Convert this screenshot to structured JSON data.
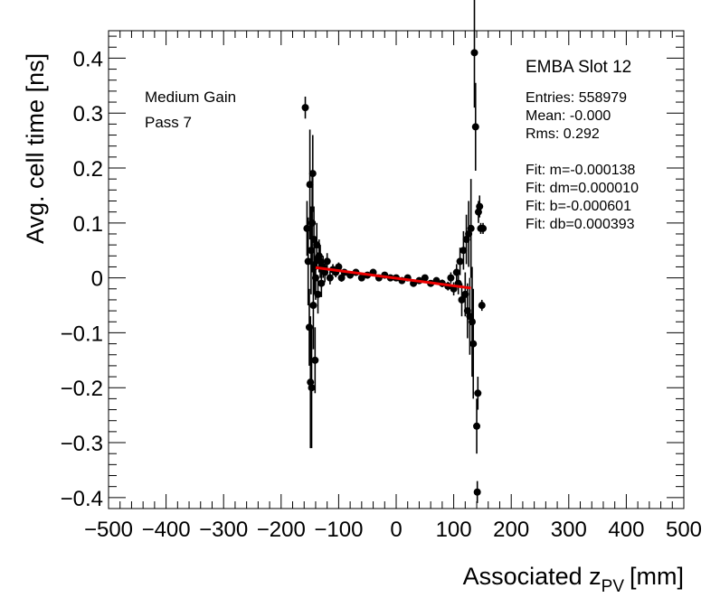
{
  "chart_data": {
    "type": "scatter",
    "title": "",
    "xlabel_main": "Associated z",
    "xlabel_sub": "PV",
    "xlabel_unit": "[mm]",
    "ylabel": "Avg. cell time [ns]",
    "xlim": [
      -500,
      500
    ],
    "ylim": [
      -0.42,
      0.45
    ],
    "x_ticks": [
      -500,
      -400,
      -300,
      -200,
      -100,
      0,
      100,
      200,
      300,
      400,
      500
    ],
    "x_tick_labels": [
      "−500",
      "−400",
      "−300",
      "−200",
      "−100",
      "0",
      "100",
      "200",
      "300",
      "400",
      "500"
    ],
    "y_ticks": [
      -0.4,
      -0.3,
      -0.2,
      -0.1,
      0,
      0.1,
      0.2,
      0.3,
      0.4
    ],
    "y_tick_labels": [
      "−0.4",
      "−0.3",
      "−0.2",
      "−0.1",
      "0",
      "0.1",
      "0.2",
      "0.3",
      "0.4"
    ],
    "grid": false,
    "series": [
      {
        "name": "Avg. cell time",
        "x": [
          -158,
          -155,
          -153,
          -151,
          -150,
          -149,
          -148,
          -147,
          -146,
          -145,
          -144,
          -143,
          -142,
          -141,
          -140,
          -138,
          -136,
          -134,
          -132,
          -130,
          -127,
          -124,
          -120,
          -115,
          -110,
          -105,
          -100,
          -95,
          -90,
          -80,
          -70,
          -60,
          -50,
          -40,
          -30,
          -20,
          -10,
          0,
          10,
          20,
          30,
          40,
          50,
          60,
          70,
          80,
          90,
          95,
          100,
          105,
          108,
          111,
          114,
          117,
          120,
          122,
          124,
          126,
          128,
          130,
          132,
          134,
          136,
          138,
          140,
          141,
          142,
          143,
          145,
          147,
          149,
          151
        ],
        "y": [
          0.31,
          0.09,
          0.03,
          -0.09,
          0.17,
          -0.19,
          0.05,
          -0.2,
          0.1,
          0.19,
          -0.05,
          0.07,
          0.02,
          -0.15,
          0.0,
          0.06,
          -0.03,
          0.04,
          0.03,
          -0.01,
          0.02,
          0.01,
          0.03,
          0.0,
          0.015,
          0.01,
          0.02,
          0.0,
          0.01,
          0.005,
          0.01,
          0.0,
          0.005,
          0.01,
          0.0,
          0.005,
          0.0,
          0.0,
          -0.005,
          0.0,
          -0.01,
          -0.005,
          0.0,
          -0.01,
          -0.005,
          -0.01,
          -0.015,
          0.0,
          -0.02,
          0.01,
          -0.01,
          0.03,
          -0.04,
          0.05,
          -0.03,
          0.07,
          -0.06,
          0.08,
          -0.07,
          0.09,
          -0.08,
          -0.12,
          0.41,
          0.275,
          -0.27,
          -0.39,
          -0.21,
          0.12,
          0.13,
          0.09,
          -0.05,
          0.09
        ],
        "yerr": [
          0.02,
          0.05,
          0.08,
          0.07,
          0.1,
          0.12,
          0.08,
          0.11,
          0.09,
          0.07,
          0.08,
          0.06,
          0.05,
          0.06,
          0.04,
          0.04,
          0.035,
          0.03,
          0.03,
          0.025,
          0.02,
          0.018,
          0.015,
          0.012,
          0.01,
          0.009,
          0.008,
          0.007,
          0.006,
          0.005,
          0.004,
          0.004,
          0.004,
          0.004,
          0.004,
          0.004,
          0.004,
          0.004,
          0.004,
          0.004,
          0.004,
          0.004,
          0.005,
          0.005,
          0.006,
          0.007,
          0.008,
          0.01,
          0.012,
          0.015,
          0.02,
          0.025,
          0.03,
          0.035,
          0.04,
          0.045,
          0.05,
          0.06,
          0.07,
          0.09,
          0.1,
          0.1,
          0.1,
          0.08,
          0.05,
          0.02,
          0.03,
          0.02,
          0.02,
          0.01,
          0.01,
          0.01
        ]
      }
    ],
    "fit_line": {
      "x": [
        -140,
        130
      ],
      "y": [
        0.0187,
        -0.0186
      ],
      "color": "#ee0000"
    },
    "annotations": {
      "gain": "Medium Gain",
      "pass": "Pass 7",
      "stat_title": "EMBA Slot 12",
      "stats": [
        "Entries: 558979",
        "Mean: -0.000",
        "Rms: 0.292",
        "",
        "Fit: m=-0.000138",
        "Fit: dm=0.000010",
        "Fit: b=-0.000601",
        "Fit: db=0.000393"
      ]
    }
  }
}
